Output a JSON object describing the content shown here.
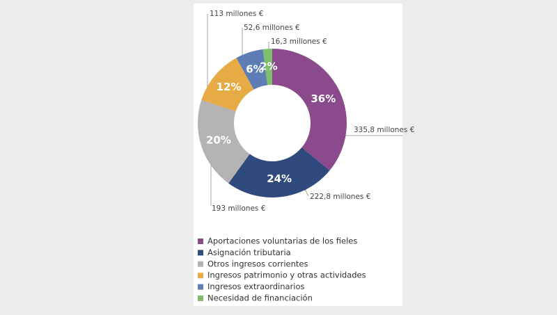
{
  "chart_data": {
    "type": "donut",
    "categories": [
      "Aportaciones voluntarias de los fieles",
      "Asignación tributaria",
      "Otros ingresos corrientes",
      "Ingresos patrimonio y otras actividades",
      "Ingresos extraordinarios",
      "Necesidad de financiación"
    ],
    "values": [
      36,
      24,
      20,
      12,
      6,
      2
    ],
    "value_labels": [
      "36%",
      "24%",
      "20%",
      "12%",
      "6%",
      "2%"
    ],
    "colors": [
      "#8b4a8c",
      "#2f4a7c",
      "#b3b3b3",
      "#e6ab45",
      "#5f7db5",
      "#7fbe6c"
    ],
    "annotations": [
      "335,8 millones €",
      "222,8 millones €",
      "193 millones €",
      "113 millones €",
      "52,6 millones €",
      "16,3 millones €"
    ],
    "legend": "bottom"
  }
}
